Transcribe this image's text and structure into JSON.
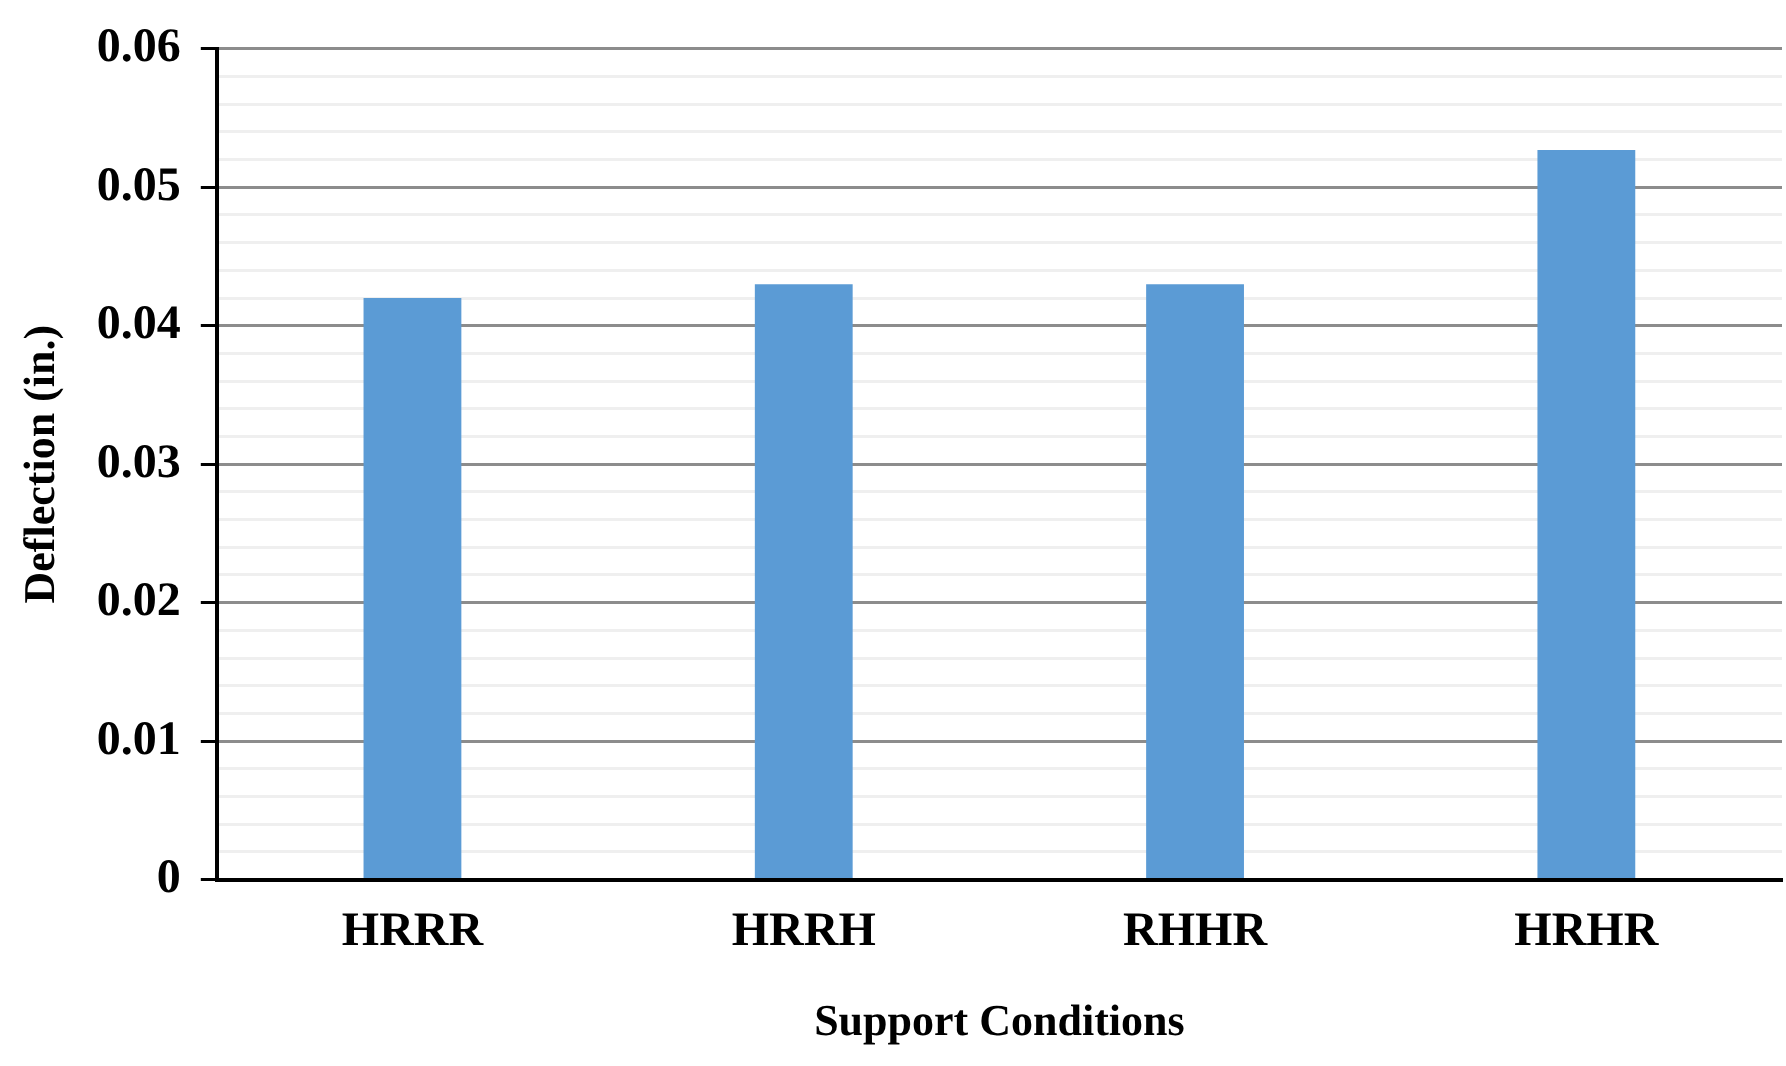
{
  "chart_data": {
    "type": "bar",
    "xlabel": "Support Conditions",
    "ylabel": "Deflection (in.)",
    "categories": [
      "HRRR",
      "HRRH",
      "RHHR",
      "HRHR"
    ],
    "values": [
      0.042,
      0.043,
      0.043,
      0.0527
    ],
    "color": "#5b9bd5",
    "ylim": [
      0,
      0.06
    ],
    "yticks": [
      0,
      {
        "value": 0.002,
        "label": null
      },
      {
        "value": 0.004,
        "label": null
      },
      {
        "value": 0.006,
        "label": null
      },
      {
        "value": 0.008,
        "label": null
      },
      0.01,
      {
        "value": 0.012,
        "label": null
      },
      {
        "value": 0.014,
        "label": null
      },
      {
        "value": 0.016,
        "label": null
      },
      {
        "value": 0.018,
        "label": null
      },
      0.02,
      {
        "value": 0.022,
        "label": null
      },
      {
        "value": 0.024,
        "label": null
      },
      {
        "value": 0.026,
        "label": null
      },
      {
        "value": 0.028,
        "label": null
      },
      0.03,
      {
        "value": 0.032,
        "label": null
      },
      {
        "value": 0.034,
        "label": null
      },
      {
        "value": 0.036,
        "label": null
      },
      {
        "value": 0.038,
        "label": null
      },
      0.04,
      {
        "value": 0.042,
        "label": null
      },
      {
        "value": 0.044,
        "label": null
      },
      {
        "value": 0.046,
        "label": null
      },
      {
        "value": 0.048,
        "label": null
      },
      0.05,
      {
        "value": 0.052,
        "label": null
      },
      {
        "value": 0.054,
        "label": null
      },
      {
        "value": 0.056,
        "label": null
      },
      {
        "value": 0.058,
        "label": null
      },
      0.06
    ],
    "grid": "y"
  }
}
